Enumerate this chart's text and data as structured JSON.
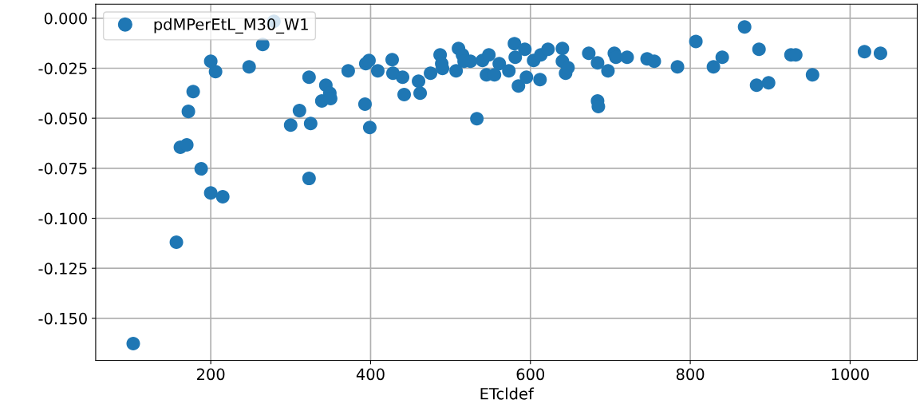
{
  "chart_data": {
    "type": "scatter",
    "xlabel": "ETcldef",
    "x": [
      103,
      157,
      162,
      170,
      172,
      178,
      188,
      200,
      200,
      206,
      215,
      248,
      265,
      279,
      300,
      311,
      323,
      323,
      325,
      339,
      344,
      349,
      350,
      372,
      409,
      393,
      394,
      398,
      399,
      427,
      428,
      440,
      442,
      460,
      462,
      475,
      487,
      490,
      489,
      507,
      510,
      515,
      517,
      525,
      533,
      540,
      545,
      548,
      555,
      561,
      573,
      580,
      581,
      585,
      593,
      595,
      604,
      613,
      612,
      622,
      640,
      640,
      644,
      647,
      673,
      684,
      684,
      685,
      697,
      705,
      707,
      721,
      746,
      755,
      784,
      807,
      829,
      840,
      868,
      883,
      886,
      898,
      926,
      932,
      953,
      1018,
      1038
    ],
    "series": [
      {
        "name": "pdMPerEtL_M30_W1",
        "color": "#1f77b4",
        "values": [
          -0.1626,
          -0.112,
          -0.0645,
          -0.0633,
          -0.0466,
          -0.0367,
          -0.0753,
          -0.0215,
          -0.0873,
          -0.0267,
          -0.0892,
          -0.0243,
          -0.0131,
          -0.0016,
          -0.0534,
          -0.0462,
          -0.0295,
          -0.0801,
          -0.0526,
          -0.0414,
          -0.0335,
          -0.0375,
          -0.0402,
          -0.0263,
          -0.0263,
          -0.043,
          -0.0227,
          -0.0211,
          -0.0546,
          -0.0207,
          -0.0275,
          -0.0295,
          -0.0382,
          -0.0315,
          -0.0375,
          -0.0275,
          -0.0183,
          -0.0251,
          -0.0227,
          -0.0263,
          -0.0151,
          -0.0183,
          -0.0215,
          -0.0215,
          -0.0502,
          -0.0211,
          -0.0283,
          -0.0183,
          -0.0283,
          -0.0227,
          -0.0263,
          -0.0127,
          -0.0195,
          -0.0339,
          -0.0155,
          -0.0295,
          -0.0211,
          -0.0183,
          -0.0307,
          -0.0155,
          -0.0151,
          -0.0215,
          -0.0275,
          -0.0247,
          -0.0175,
          -0.0223,
          -0.0414,
          -0.0442,
          -0.0263,
          -0.0175,
          -0.0195,
          -0.0195,
          -0.0203,
          -0.0215,
          -0.0243,
          -0.0116,
          -0.0243,
          -0.0195,
          -0.0044,
          -0.0335,
          -0.0155,
          -0.0323,
          -0.0183,
          -0.0183,
          -0.0283,
          -0.0167,
          -0.0175
        ]
      }
    ],
    "xlim": [
      56,
      1084
    ],
    "ylim": [
      -0.171,
      0.007
    ],
    "xticks": [
      200,
      400,
      600,
      800,
      1000
    ],
    "yticks": [
      {
        "value": 0,
        "label": "0.000"
      },
      {
        "value": -0.025,
        "label": "-0.025"
      },
      {
        "value": -0.05,
        "label": "-0.050"
      },
      {
        "value": -0.075,
        "label": "-0.075"
      },
      {
        "value": -0.1,
        "label": "-0.100"
      },
      {
        "value": -0.125,
        "label": "-0.125"
      },
      {
        "value": -0.15,
        "label": "-0.150"
      }
    ],
    "grid": true,
    "legend": "top left",
    "marker": "circle"
  }
}
